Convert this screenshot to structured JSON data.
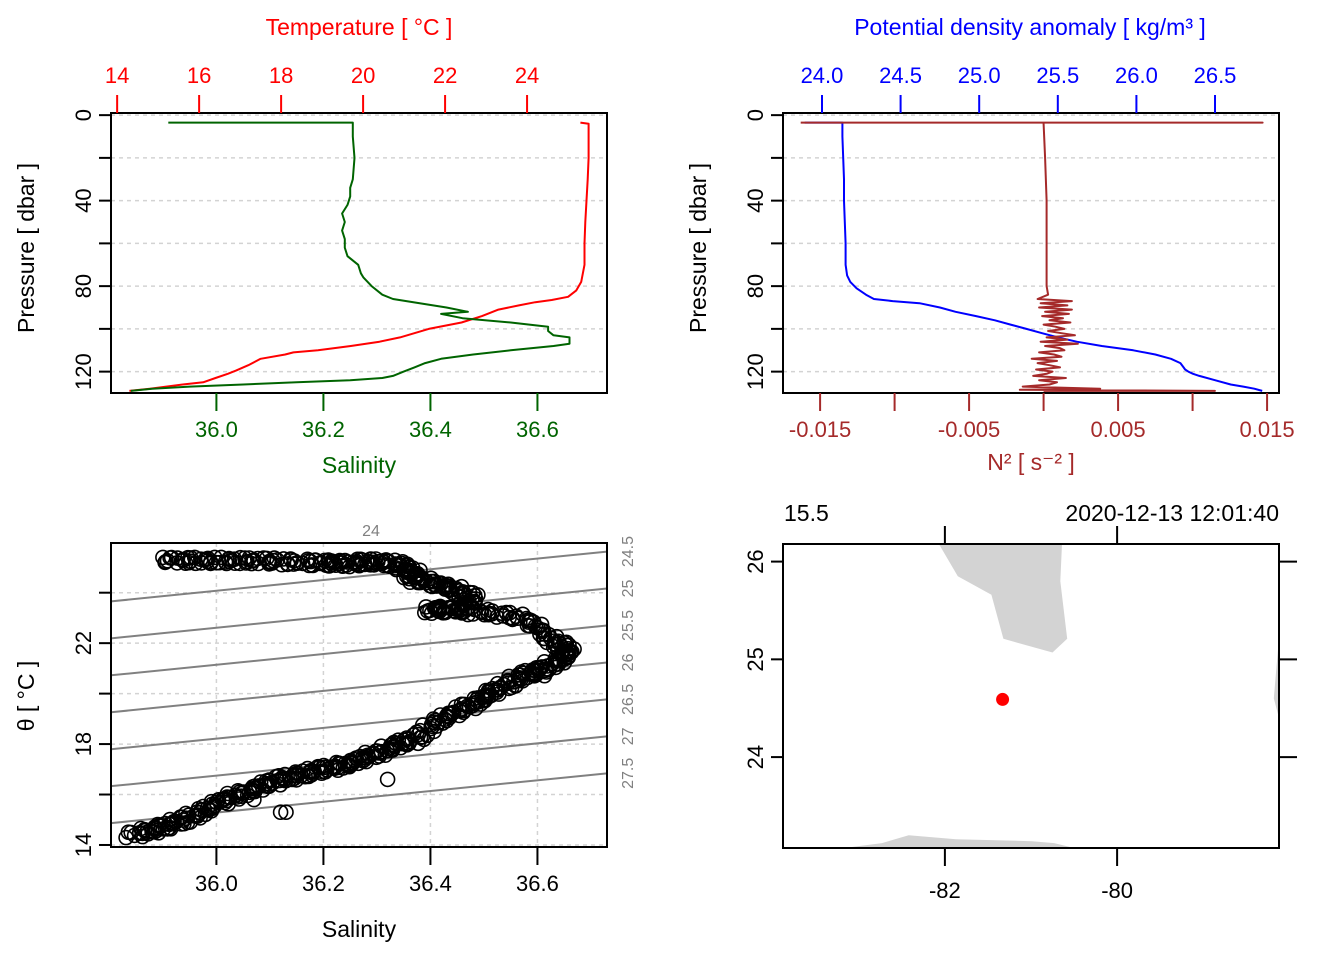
{
  "figure": {
    "type": "oce CTD summary plot"
  },
  "chart_data": [
    {
      "id": "profile-TS",
      "type": "line",
      "title": "",
      "top_axis": {
        "label": "Temperature [ °C ]",
        "ticks": [
          14,
          16,
          18,
          20,
          22,
          24
        ],
        "range": [
          13.85,
          25.95
        ],
        "color": "#ff0000"
      },
      "bottom_axis": {
        "label": "Salinity",
        "ticks": [
          "36.0",
          "36.2",
          "36.4",
          "36.6"
        ],
        "range": [
          35.803,
          36.73
        ],
        "color": "#006400"
      },
      "left_axis": {
        "label": "Pressure [ dbar ]",
        "ticks": [
          0,
          40,
          80,
          120
        ],
        "minor_ticks": [
          20,
          60,
          100
        ],
        "range": [
          130,
          -1
        ],
        "reversed": true
      },
      "grid": true,
      "series": [
        {
          "name": "Temperature",
          "color": "#ff0000",
          "axis": "top",
          "pressure": [
            3.5,
            4,
            10,
            20,
            30,
            40,
            50,
            60,
            70,
            78,
            82,
            85,
            86.5,
            87.5,
            89,
            91,
            94,
            97,
            100,
            104,
            106,
            108,
            110,
            111,
            112,
            114,
            117,
            119.5,
            121,
            123,
            125,
            126,
            127,
            128,
            129
          ],
          "values": [
            25.3,
            25.5,
            25.5,
            25.5,
            25.48,
            25.45,
            25.42,
            25.4,
            25.4,
            25.32,
            25.2,
            25.0,
            24.6,
            24.2,
            23.8,
            23.3,
            22.9,
            22.4,
            21.6,
            20.9,
            20.4,
            19.7,
            18.9,
            18.3,
            18.1,
            17.5,
            17.2,
            16.9,
            16.7,
            16.4,
            16.1,
            15.6,
            15.2,
            14.8,
            14.3
          ]
        },
        {
          "name": "Salinity",
          "color": "#006400",
          "axis": "bottom",
          "pressure": [
            3.5,
            3.5,
            10,
            20,
            30,
            34,
            38,
            42,
            46,
            50,
            54,
            58,
            62,
            66,
            70,
            74,
            76,
            80,
            84,
            86,
            88,
            90,
            92,
            93,
            95,
            97,
            99,
            101,
            103,
            104,
            105,
            107,
            108,
            110,
            112,
            114,
            116,
            118,
            120,
            122,
            123,
            124,
            125,
            126,
            127,
            128,
            129
          ],
          "values": [
            35.91,
            36.255,
            36.255,
            36.258,
            36.255,
            36.25,
            36.25,
            36.245,
            36.235,
            36.24,
            36.235,
            36.24,
            36.24,
            36.245,
            36.265,
            36.27,
            36.275,
            36.29,
            36.31,
            36.33,
            36.38,
            36.43,
            36.47,
            36.42,
            36.46,
            36.55,
            36.62,
            36.62,
            36.63,
            36.66,
            36.66,
            36.66,
            36.63,
            36.55,
            36.48,
            36.42,
            36.39,
            36.37,
            36.35,
            36.33,
            36.31,
            36.25,
            36.15,
            36.05,
            35.95,
            35.88,
            35.84
          ]
        }
      ]
    },
    {
      "id": "profile-density-N2",
      "type": "line",
      "top_axis": {
        "label": "Potential density anomaly [ kg/m³ ]",
        "ticks": [
          "24.0",
          "24.5",
          "25.0",
          "25.5",
          "26.0",
          "26.5"
        ],
        "range": [
          23.752,
          26.907
        ],
        "color": "#0000ff"
      },
      "bottom_axis": {
        "label": "N² [ s⁻² ]",
        "ticks": [
          "-0.015",
          "-0.005",
          "0.005",
          "0.015"
        ],
        "minor_ticks": [
          -0.01,
          0,
          0.01
        ],
        "range": [
          -0.01749,
          0.0158
        ],
        "color": "#a52a2a"
      },
      "left_axis": {
        "label": "Pressure [ dbar ]",
        "ticks": [
          0,
          40,
          80,
          120
        ],
        "minor_ticks": [
          20,
          60,
          100
        ],
        "range": [
          130,
          -1
        ],
        "reversed": true
      },
      "grid": true,
      "series": [
        {
          "name": "Potential density anomaly",
          "color": "#0000ff",
          "axis": "top",
          "pressure": [
            3.5,
            3.5,
            10,
            20,
            30,
            40,
            50,
            60,
            70,
            75,
            78,
            81,
            84,
            86,
            87,
            88,
            90,
            92,
            94,
            96,
            98,
            100,
            102,
            104,
            106,
            108,
            110,
            112,
            114,
            116,
            118,
            119,
            120,
            121,
            122,
            124,
            126,
            127,
            128,
            129
          ],
          "values": [
            23.89,
            24.13,
            24.13,
            24.135,
            24.14,
            24.14,
            24.145,
            24.15,
            24.15,
            24.16,
            24.18,
            24.22,
            24.28,
            24.33,
            24.45,
            24.62,
            24.75,
            24.85,
            24.98,
            25.1,
            25.2,
            25.3,
            25.4,
            25.5,
            25.62,
            25.78,
            25.98,
            26.12,
            26.22,
            26.28,
            26.3,
            26.31,
            26.33,
            26.36,
            26.4,
            26.5,
            26.6,
            26.68,
            26.75,
            26.8
          ]
        },
        {
          "name": "N2",
          "color": "#a52a2a",
          "axis": "bottom",
          "pressure": [
            3.5,
            3.5,
            3.5,
            4,
            20,
            40,
            60,
            80,
            84,
            86,
            87,
            88,
            89,
            90,
            91,
            92,
            93,
            94,
            95,
            96,
            97,
            98,
            99,
            100,
            101,
            102,
            103,
            104,
            105,
            106,
            107,
            108,
            109,
            110,
            111,
            112,
            113,
            114,
            115,
            116,
            117,
            118,
            119,
            120,
            121,
            122,
            123,
            124,
            125,
            126,
            127,
            128,
            128.5,
            129,
            129
          ],
          "values": [
            -0.0163,
            0.0147,
            0.0,
            0.0,
            0.0001,
            0.0002,
            0.0002,
            0.0002,
            0.0003,
            -0.0004,
            0.0019,
            -0.0002,
            0.0016,
            -0.0003,
            0.0019,
            0.0001,
            0.0017,
            -0.0001,
            0.0013,
            0.0004,
            0.0018,
            0.0,
            0.0008,
            0.0014,
            0.0003,
            0.0012,
            0.0021,
            0.0002,
            0.0016,
            -0.0002,
            0.0023,
            0.0001,
            0.0011,
            0.0014,
            -0.0003,
            0.0007,
            0.0012,
            -0.0008,
            0.0009,
            -0.0004,
            0.0004,
            0.0011,
            -0.0005,
            0.0006,
            0.0002,
            -0.0007,
            0.0015,
            -0.0003,
            0.0009,
            0.0004,
            -0.0014,
            0.0038,
            -0.0016,
            0.0115,
            0.0
          ]
        }
      ]
    },
    {
      "id": "TS-diagram",
      "type": "scatter",
      "xlabel": "Salinity",
      "ylabel": "θ [ °C ]",
      "x_ticks": [
        "36.0",
        "36.2",
        "36.4",
        "36.6"
      ],
      "y_ticks": [
        14,
        18,
        22
      ],
      "y_minor_ticks": [
        16,
        20,
        24
      ],
      "xlim": [
        35.803,
        36.73
      ],
      "ylim": [
        13.92,
        25.97
      ],
      "grid": true,
      "marker": "open-circle",
      "isopycnals": {
        "color": "#808080",
        "labels": [
          "24",
          "24.5",
          "25",
          "25.5",
          "26",
          "26.5",
          "27",
          "27.5"
        ],
        "sigma": [
          24,
          24.5,
          25,
          25.5,
          26,
          26.5,
          27,
          27.5
        ]
      },
      "x": [
        35.9,
        35.93,
        35.96,
        35.99,
        36.02,
        36.05,
        36.08,
        36.11,
        36.14,
        36.17,
        36.2,
        36.22,
        36.24,
        36.26,
        36.28,
        36.3,
        36.32,
        36.34,
        36.35,
        36.37,
        36.36,
        36.38,
        36.4,
        36.42,
        36.44,
        36.46,
        36.48,
        36.47,
        36.44,
        36.4,
        36.41,
        36.45,
        36.48,
        36.52,
        36.55,
        36.58,
        36.6,
        36.62,
        36.64,
        36.65,
        36.66,
        36.65,
        36.63,
        36.61,
        36.6,
        36.58,
        36.56,
        36.55,
        36.53,
        36.51,
        36.5,
        36.48,
        36.46,
        36.44,
        36.42,
        36.4,
        36.38,
        36.36,
        36.34,
        36.32,
        36.3,
        36.28,
        36.26,
        36.24,
        36.22,
        36.2,
        36.18,
        36.16,
        36.14,
        36.12,
        36.1,
        36.08,
        36.06,
        36.04,
        36.02,
        36.0,
        35.98,
        35.96,
        35.94,
        35.92,
        35.9,
        35.88,
        35.86,
        35.84,
        36.12,
        36.13,
        36.32,
        36.07,
        36.02
      ],
      "y": [
        25.28,
        25.28,
        25.28,
        25.28,
        25.28,
        25.27,
        25.26,
        25.25,
        25.22,
        25.2,
        25.18,
        25.17,
        25.15,
        25.2,
        25.22,
        25.22,
        25.18,
        25.1,
        25.0,
        24.8,
        24.6,
        24.5,
        24.4,
        24.3,
        24.2,
        24.0,
        23.8,
        23.5,
        23.35,
        23.3,
        23.35,
        23.3,
        23.25,
        23.2,
        23.1,
        22.9,
        22.6,
        22.2,
        22.0,
        21.8,
        21.6,
        21.4,
        21.2,
        21.0,
        20.8,
        20.8,
        20.6,
        20.4,
        20.2,
        20.0,
        19.8,
        19.6,
        19.4,
        19.2,
        19.0,
        18.7,
        18.3,
        18.1,
        18.0,
        17.8,
        17.6,
        17.5,
        17.3,
        17.2,
        17.1,
        17.0,
        16.9,
        16.8,
        16.7,
        16.6,
        16.45,
        16.3,
        16.15,
        16.0,
        15.8,
        15.6,
        15.4,
        15.2,
        15.0,
        14.85,
        14.7,
        14.6,
        14.5,
        14.4,
        15.3,
        15.3,
        16.6,
        15.8,
        15.9
      ]
    },
    {
      "id": "station-map",
      "type": "scatter",
      "top_left_label": "15.5",
      "top_right_label": "2020-12-13 12:01:40",
      "x_ticks": [
        "-82",
        "-80"
      ],
      "y_ticks": [
        "24",
        "25",
        "26"
      ],
      "xlim": [
        -83.88,
        -78.12
      ],
      "ylim": [
        23.07,
        26.18
      ],
      "land_color": "#d3d3d3",
      "station": {
        "lon": -81.33,
        "lat": 24.59,
        "color": "#ff0000"
      },
      "coastlines": [
        {
          "name": "florida",
          "lon": [
            -82.07,
            -81.85,
            -81.46,
            -81.32,
            -80.75,
            -80.58,
            -80.66,
            -80.64
          ],
          "lat": [
            26.18,
            25.85,
            25.66,
            25.21,
            25.07,
            25.21,
            25.8,
            26.18
          ]
        },
        {
          "name": "bahamas-edge",
          "lon": [
            -78.12,
            -78.18,
            -78.12
          ],
          "lat": [
            25.22,
            24.6,
            24.4
          ]
        },
        {
          "name": "cuba",
          "lon": [
            -83.17,
            -82.73,
            -82.42,
            -81.87,
            -80.99,
            -80.73,
            -80.5
          ],
          "lat": [
            23.07,
            23.12,
            23.2,
            23.16,
            23.14,
            23.12,
            23.07
          ]
        }
      ]
    }
  ]
}
